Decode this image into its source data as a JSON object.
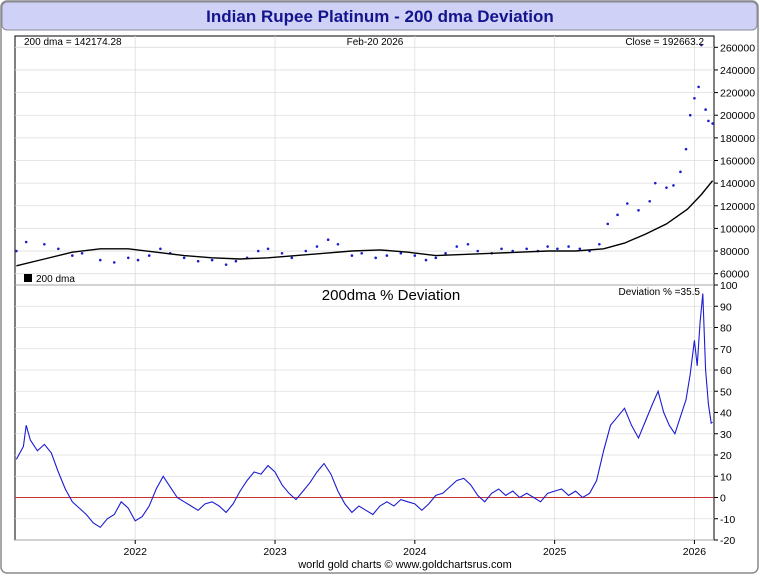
{
  "title": "Indian Rupee Platinum - 200 dma Deviation",
  "footer": "world gold charts © www.goldchartsrus.com",
  "colors": {
    "title_bg": "#cfd2f6",
    "title_text": "#14148c",
    "price": "#1c1cc8",
    "dma": "#000000",
    "deviation": "#1c1cd2",
    "zero_line": "#c83232",
    "grid": "#dddddd"
  },
  "chart_data": [
    {
      "type": "scatter",
      "legend": {
        "marker": "200 dma",
        "placement": "bottom-left"
      },
      "header_left": "200 dma = 142174.28",
      "header_center": "Feb-20  2026",
      "header_right": "Close = 192663.2",
      "ylim": [
        50000,
        270000
      ],
      "yticks": [
        60000,
        80000,
        100000,
        120000,
        140000,
        160000,
        180000,
        200000,
        220000,
        240000,
        260000
      ],
      "xlim": [
        2021.14,
        2026.14
      ],
      "xticks": [
        2022,
        2023,
        2024,
        2025,
        2026
      ],
      "series": [
        {
          "name": "Close",
          "style": "dots",
          "points": [
            [
              2021.15,
              80000
            ],
            [
              2021.22,
              88000
            ],
            [
              2021.35,
              86000
            ],
            [
              2021.45,
              82000
            ],
            [
              2021.55,
              76000
            ],
            [
              2021.62,
              78000
            ],
            [
              2021.75,
              72000
            ],
            [
              2021.85,
              70000
            ],
            [
              2021.95,
              74000
            ],
            [
              2022.02,
              72000
            ],
            [
              2022.1,
              76000
            ],
            [
              2022.18,
              82000
            ],
            [
              2022.25,
              78000
            ],
            [
              2022.35,
              74000
            ],
            [
              2022.45,
              71000
            ],
            [
              2022.55,
              72000
            ],
            [
              2022.65,
              68000
            ],
            [
              2022.72,
              71000
            ],
            [
              2022.8,
              74000
            ],
            [
              2022.88,
              80000
            ],
            [
              2022.95,
              82000
            ],
            [
              2023.05,
              78000
            ],
            [
              2023.12,
              74000
            ],
            [
              2023.22,
              80000
            ],
            [
              2023.3,
              84000
            ],
            [
              2023.38,
              90000
            ],
            [
              2023.45,
              86000
            ],
            [
              2023.55,
              76000
            ],
            [
              2023.62,
              78000
            ],
            [
              2023.72,
              74000
            ],
            [
              2023.8,
              76000
            ],
            [
              2023.9,
              78000
            ],
            [
              2024.0,
              76000
            ],
            [
              2024.08,
              72000
            ],
            [
              2024.15,
              74000
            ],
            [
              2024.22,
              78000
            ],
            [
              2024.3,
              84000
            ],
            [
              2024.38,
              86000
            ],
            [
              2024.45,
              80000
            ],
            [
              2024.55,
              78000
            ],
            [
              2024.62,
              82000
            ],
            [
              2024.7,
              80000
            ],
            [
              2024.8,
              82000
            ],
            [
              2024.88,
              80000
            ],
            [
              2024.95,
              84000
            ],
            [
              2025.02,
              82000
            ],
            [
              2025.1,
              84000
            ],
            [
              2025.18,
              82000
            ],
            [
              2025.25,
              80000
            ],
            [
              2025.32,
              86000
            ],
            [
              2025.38,
              104000
            ],
            [
              2025.45,
              112000
            ],
            [
              2025.52,
              122000
            ],
            [
              2025.6,
              116000
            ],
            [
              2025.68,
              124000
            ],
            [
              2025.72,
              140000
            ],
            [
              2025.8,
              136000
            ],
            [
              2025.85,
              138000
            ],
            [
              2025.9,
              150000
            ],
            [
              2025.94,
              170000
            ],
            [
              2025.97,
              200000
            ],
            [
              2026.0,
              215000
            ],
            [
              2026.03,
              225000
            ],
            [
              2026.05,
              262000
            ],
            [
              2026.08,
              205000
            ],
            [
              2026.1,
              195000
            ],
            [
              2026.13,
              192663
            ]
          ]
        },
        {
          "name": "200 dma",
          "style": "line",
          "points": [
            [
              2021.15,
              67000
            ],
            [
              2021.35,
              73000
            ],
            [
              2021.55,
              79000
            ],
            [
              2021.75,
              82000
            ],
            [
              2021.95,
              82000
            ],
            [
              2022.15,
              79000
            ],
            [
              2022.35,
              76000
            ],
            [
              2022.55,
              74000
            ],
            [
              2022.75,
              73000
            ],
            [
              2022.95,
              74000
            ],
            [
              2023.15,
              76000
            ],
            [
              2023.35,
              78000
            ],
            [
              2023.55,
              80000
            ],
            [
              2023.75,
              81000
            ],
            [
              2023.95,
              79000
            ],
            [
              2024.15,
              76000
            ],
            [
              2024.35,
              77000
            ],
            [
              2024.55,
              78000
            ],
            [
              2024.75,
              79000
            ],
            [
              2024.95,
              80000
            ],
            [
              2025.15,
              80000
            ],
            [
              2025.35,
              82000
            ],
            [
              2025.5,
              87000
            ],
            [
              2025.65,
              95000
            ],
            [
              2025.8,
              104000
            ],
            [
              2025.95,
              117000
            ],
            [
              2026.05,
              130000
            ],
            [
              2026.13,
              142174
            ]
          ]
        }
      ]
    },
    {
      "type": "line",
      "title": "200dma  %  Deviation",
      "header_right": "Deviation % =35.5",
      "ylim": [
        -20,
        100
      ],
      "yticks": [
        -20,
        -10,
        0,
        10,
        20,
        30,
        40,
        50,
        60,
        70,
        80,
        90,
        100
      ],
      "xlim": [
        2021.14,
        2026.14
      ],
      "xticks": [
        2022,
        2023,
        2024,
        2025,
        2026
      ],
      "xlabels": [
        "2022",
        "2023",
        "2024",
        "2025",
        "2026"
      ],
      "series": [
        {
          "name": "Deviation %",
          "points": [
            [
              2021.15,
              18
            ],
            [
              2021.2,
              24
            ],
            [
              2021.22,
              34
            ],
            [
              2021.25,
              27
            ],
            [
              2021.3,
              22
            ],
            [
              2021.35,
              25
            ],
            [
              2021.4,
              21
            ],
            [
              2021.45,
              12
            ],
            [
              2021.5,
              4
            ],
            [
              2021.55,
              -2
            ],
            [
              2021.6,
              -5
            ],
            [
              2021.65,
              -8
            ],
            [
              2021.7,
              -12
            ],
            [
              2021.75,
              -14
            ],
            [
              2021.8,
              -10
            ],
            [
              2021.85,
              -8
            ],
            [
              2021.9,
              -2
            ],
            [
              2021.95,
              -5
            ],
            [
              2022.0,
              -11
            ],
            [
              2022.05,
              -9
            ],
            [
              2022.1,
              -4
            ],
            [
              2022.15,
              4
            ],
            [
              2022.2,
              10
            ],
            [
              2022.25,
              5
            ],
            [
              2022.3,
              0
            ],
            [
              2022.35,
              -2
            ],
            [
              2022.4,
              -4
            ],
            [
              2022.45,
              -6
            ],
            [
              2022.5,
              -3
            ],
            [
              2022.55,
              -2
            ],
            [
              2022.6,
              -4
            ],
            [
              2022.65,
              -7
            ],
            [
              2022.7,
              -3
            ],
            [
              2022.75,
              3
            ],
            [
              2022.8,
              8
            ],
            [
              2022.85,
              12
            ],
            [
              2022.9,
              11
            ],
            [
              2022.95,
              15
            ],
            [
              2023.0,
              12
            ],
            [
              2023.05,
              6
            ],
            [
              2023.1,
              2
            ],
            [
              2023.15,
              -1
            ],
            [
              2023.2,
              3
            ],
            [
              2023.25,
              7
            ],
            [
              2023.3,
              12
            ],
            [
              2023.35,
              16
            ],
            [
              2023.4,
              11
            ],
            [
              2023.45,
              3
            ],
            [
              2023.5,
              -3
            ],
            [
              2023.55,
              -7
            ],
            [
              2023.6,
              -4
            ],
            [
              2023.65,
              -6
            ],
            [
              2023.7,
              -8
            ],
            [
              2023.75,
              -4
            ],
            [
              2023.8,
              -2
            ],
            [
              2023.85,
              -4
            ],
            [
              2023.9,
              -1
            ],
            [
              2023.95,
              -2
            ],
            [
              2024.0,
              -3
            ],
            [
              2024.05,
              -6
            ],
            [
              2024.1,
              -3
            ],
            [
              2024.15,
              1
            ],
            [
              2024.2,
              2
            ],
            [
              2024.25,
              5
            ],
            [
              2024.3,
              8
            ],
            [
              2024.35,
              9
            ],
            [
              2024.4,
              6
            ],
            [
              2024.45,
              1
            ],
            [
              2024.5,
              -2
            ],
            [
              2024.55,
              2
            ],
            [
              2024.6,
              4
            ],
            [
              2024.65,
              1
            ],
            [
              2024.7,
              3
            ],
            [
              2024.75,
              0
            ],
            [
              2024.8,
              2
            ],
            [
              2024.85,
              0
            ],
            [
              2024.9,
              -2
            ],
            [
              2024.95,
              2
            ],
            [
              2025.0,
              3
            ],
            [
              2025.05,
              4
            ],
            [
              2025.1,
              1
            ],
            [
              2025.15,
              3
            ],
            [
              2025.2,
              0
            ],
            [
              2025.25,
              2
            ],
            [
              2025.3,
              8
            ],
            [
              2025.35,
              22
            ],
            [
              2025.4,
              34
            ],
            [
              2025.45,
              38
            ],
            [
              2025.5,
              42
            ],
            [
              2025.55,
              34
            ],
            [
              2025.6,
              28
            ],
            [
              2025.65,
              36
            ],
            [
              2025.7,
              44
            ],
            [
              2025.74,
              50
            ],
            [
              2025.78,
              40
            ],
            [
              2025.82,
              34
            ],
            [
              2025.86,
              30
            ],
            [
              2025.9,
              38
            ],
            [
              2025.94,
              46
            ],
            [
              2025.97,
              58
            ],
            [
              2026.0,
              74
            ],
            [
              2026.02,
              62
            ],
            [
              2026.04,
              82
            ],
            [
              2026.06,
              96
            ],
            [
              2026.08,
              60
            ],
            [
              2026.1,
              44
            ],
            [
              2026.12,
              35
            ],
            [
              2026.13,
              35.5
            ]
          ]
        }
      ]
    }
  ]
}
